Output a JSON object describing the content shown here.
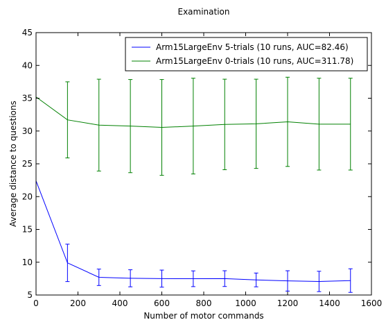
{
  "chart_data": {
    "type": "line",
    "title": "Examination",
    "xlabel": "Number of motor commands",
    "ylabel": "Average distance to questions",
    "xlim": [
      0,
      1600
    ],
    "ylim": [
      5,
      45
    ],
    "xticks": [
      0,
      200,
      400,
      600,
      800,
      1000,
      1200,
      1400,
      1600
    ],
    "yticks": [
      5,
      10,
      15,
      20,
      25,
      30,
      35,
      40,
      45
    ],
    "grid": false,
    "legend_position": "top-right",
    "series": [
      {
        "name": "Arm15LargeEnv 5-trials (10 runs, AUC=82.46)",
        "color": "#0000ff",
        "x": [
          0,
          150,
          300,
          450,
          600,
          750,
          900,
          1050,
          1200,
          1350,
          1500
        ],
        "y": [
          22.4,
          9.9,
          7.7,
          7.55,
          7.5,
          7.48,
          7.5,
          7.3,
          7.15,
          7.07,
          7.2
        ],
        "error": [
          0,
          2.85,
          1.25,
          1.3,
          1.3,
          1.2,
          1.2,
          1.05,
          1.55,
          1.55,
          1.8
        ]
      },
      {
        "name": "Arm15LargeEnv 0-trials (10 runs, AUC=311.78)",
        "color": "#008000",
        "x": [
          0,
          150,
          300,
          450,
          600,
          750,
          900,
          1050,
          1200,
          1350,
          1500
        ],
        "y": [
          35.2,
          31.7,
          30.9,
          30.75,
          30.55,
          30.75,
          31.0,
          31.1,
          31.4,
          31.05,
          31.05
        ],
        "error": [
          0,
          5.8,
          7.0,
          7.1,
          7.3,
          7.3,
          6.9,
          6.8,
          6.8,
          7.0,
          7.0
        ]
      }
    ]
  }
}
